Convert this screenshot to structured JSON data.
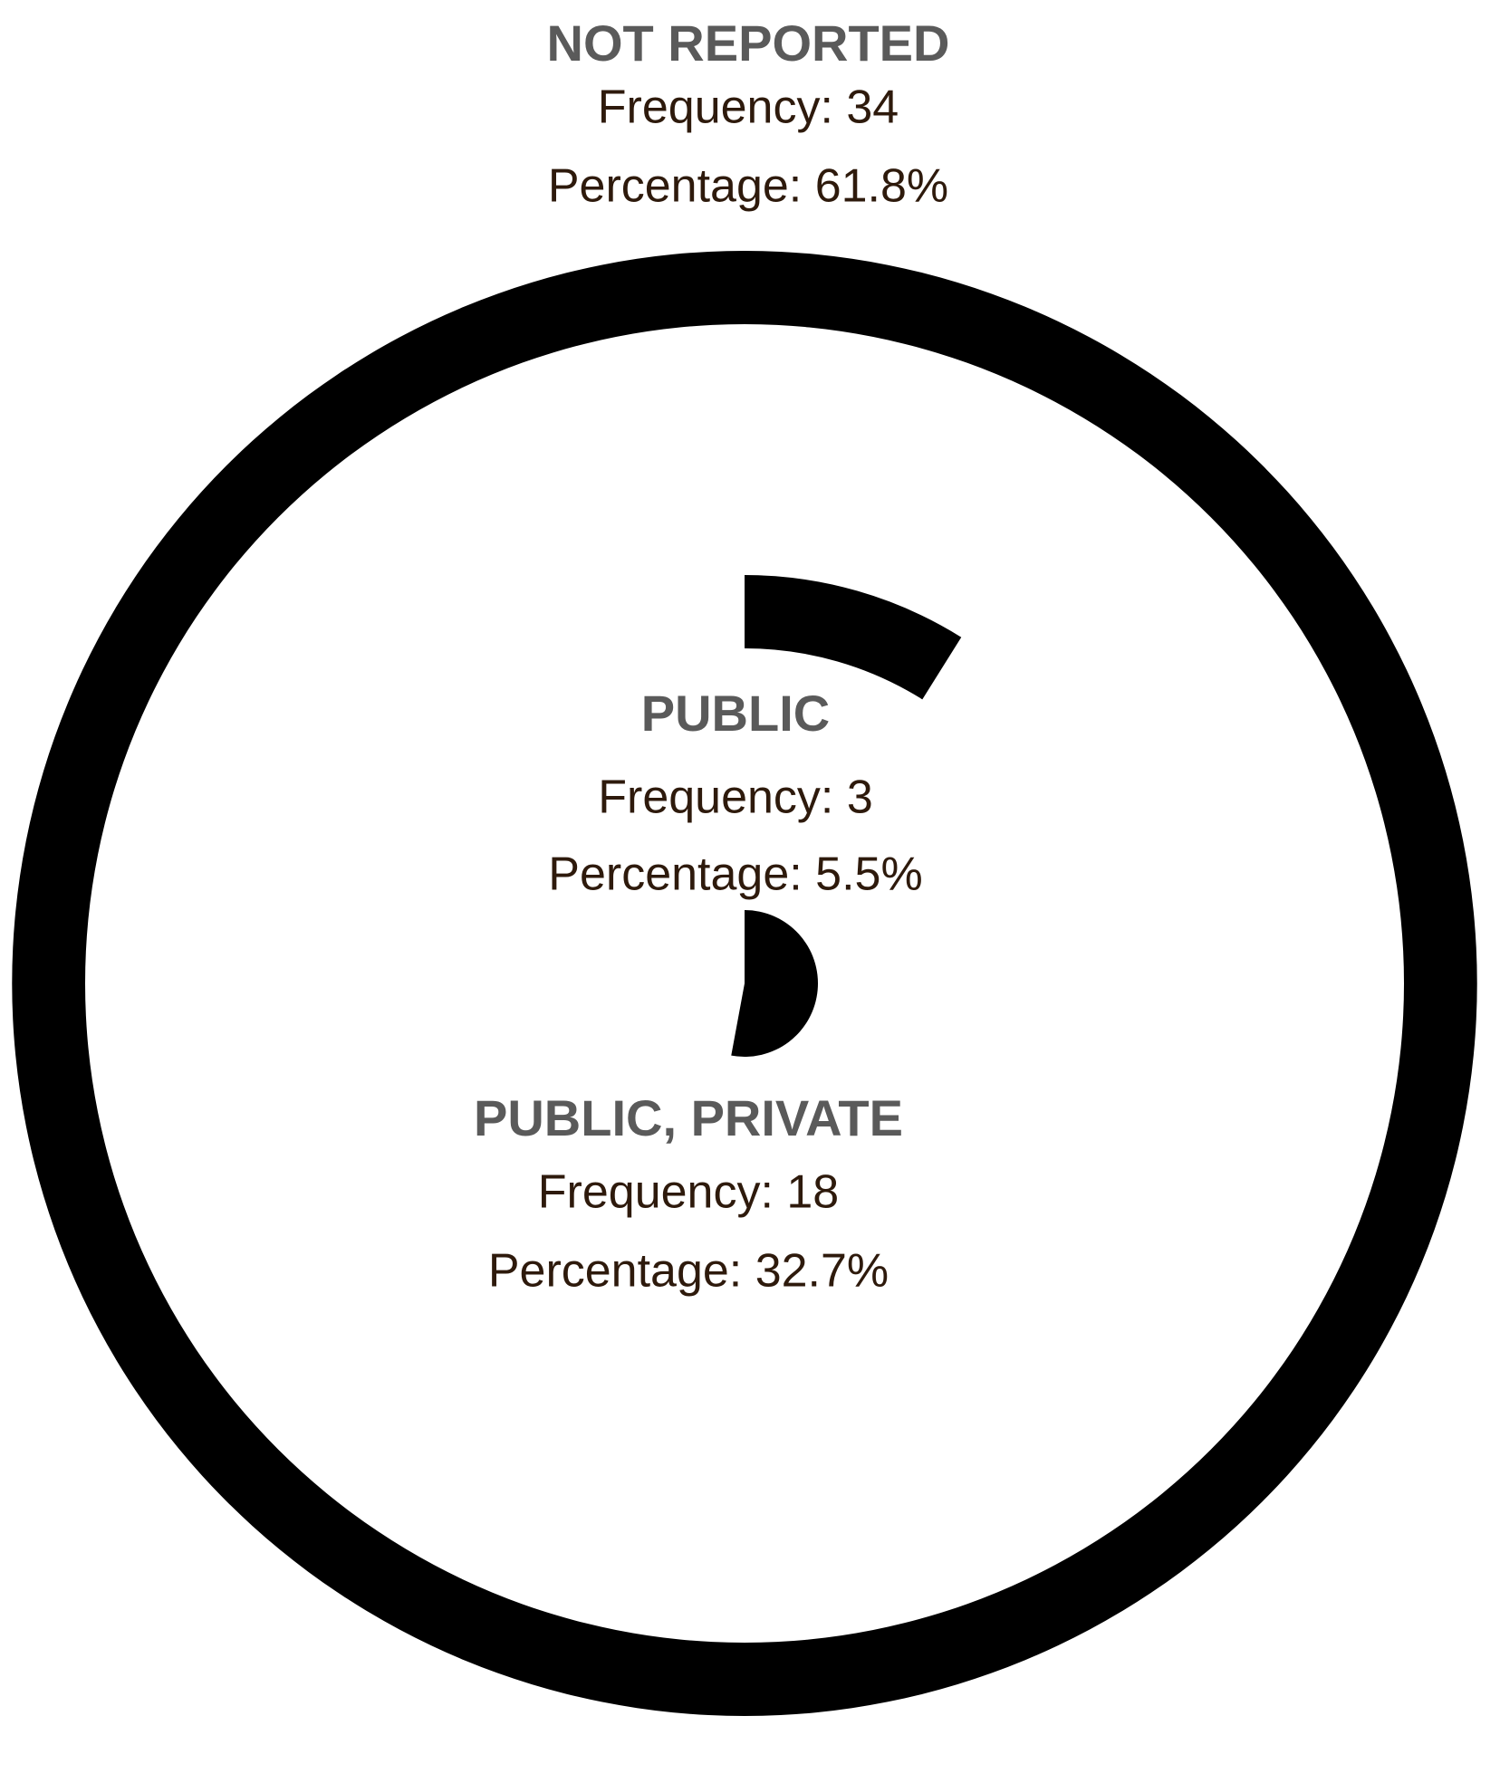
{
  "chart_data": {
    "type": "radial-bar",
    "color": "#000000",
    "categories": [
      "NOT REPORTED",
      "PUBLIC",
      "PUBLIC, PRIVATE"
    ],
    "series": [
      {
        "name": "Frequency",
        "values": [
          34,
          3,
          18
        ],
        "value_labels": [
          "Frequency: 34",
          "Frequency: 3",
          "Frequency: 18"
        ]
      },
      {
        "name": "Percentage",
        "values": [
          61.8,
          5.5,
          32.7
        ],
        "value_labels": [
          "Percentage: 61.8%",
          "Percentage: 5.5%",
          "Percentage: 32.7%"
        ]
      }
    ]
  }
}
